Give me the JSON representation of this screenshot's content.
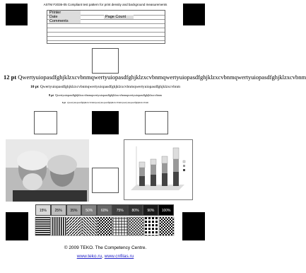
{
  "header": {
    "title": "ASTM F2036-05 Compliant test pattern for print density and background measurements"
  },
  "form": {
    "printer": "Printer",
    "date": "Date",
    "page_count": "Page Count",
    "comments": "Comments"
  },
  "text_lines": [
    {
      "label": "12 pt",
      "text": "Qwertyuiopasdfghjklzxcvbnmqwertyuiopasdfghjklzxcvbnmqwertyuiopasdfghjklzxcvbnmqwertyuiopasdfghjklzxcvbnm"
    },
    {
      "label": "10 pt",
      "text": "Qwertyuiopasdfghjklzxcvbnmqwertyuiopasdfghjklzxcvbnmqwertyuiopasdfghjklzxcvbnm"
    },
    {
      "label": "8 pt",
      "text": "Qwertyuiopasdfghjklzxcvbnmqwertyuiopasdfghjklzxcvbnmqwertyuiopasdfghjklzxcvbnm"
    },
    {
      "label": "6 pt",
      "text": "Qwertyuiopasdfghjklzxcvbnmqwertyuiopasdfghjklzxcvbnmqwertyuiopasdfghjklzxcvbnm"
    }
  ],
  "gray_patches": [
    {
      "label": "15%",
      "color": "#d9d9d9"
    },
    {
      "label": "25%",
      "color": "#bfbfbf"
    },
    {
      "label": "35%",
      "color": "#a6a6a6"
    },
    {
      "label": "50%",
      "color": "#808080"
    },
    {
      "label": "60%",
      "color": "#666666"
    },
    {
      "label": "75%",
      "color": "#404040"
    },
    {
      "label": "80%",
      "color": "#333333"
    },
    {
      "label": "90%",
      "color": "#1a1a1a"
    },
    {
      "label": "100%",
      "color": "#000000"
    }
  ],
  "footer": {
    "copyright": "© 2009 TEKO. The Competency Centre.",
    "link1": "www.teko.ru",
    "separator": ",",
    "link2": "www.cnfilas.ru"
  }
}
